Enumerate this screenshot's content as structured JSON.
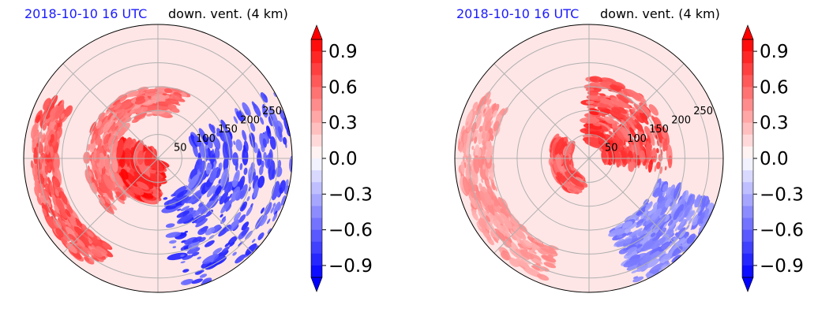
{
  "chart_data": [
    {
      "type": "heatmap",
      "projection": "polar",
      "date_title": "2018-10-10 16 UTC",
      "title": "down. vent. (4 km)",
      "radial_ticks": [
        50,
        100,
        150,
        200,
        250
      ],
      "r_max": 280,
      "angular_grid_deg": 45,
      "grid": true,
      "colormap": "bwr",
      "clim": [
        -1.0,
        1.0
      ],
      "colorbar_ticks": [
        0.9,
        0.6,
        0.3,
        0.0,
        -0.3,
        -0.6,
        -0.9
      ],
      "colorbar_tick_labels": [
        "0.9",
        "0.6",
        "0.3",
        "0.0",
        "−0.3",
        "−0.6",
        "−0.9"
      ],
      "colorbar_extend": "both",
      "features": [
        {
          "feature": "strong positive core",
          "r": [
            10,
            90
          ],
          "theta": [
            160,
            260
          ],
          "value": 1.0
        },
        {
          "feature": "positive band",
          "r": [
            90,
            150
          ],
          "theta": [
            70,
            230
          ],
          "value": 0.7
        },
        {
          "feature": "outer positive arc",
          "r": [
            210,
            265
          ],
          "theta": [
            150,
            240
          ],
          "value": 0.8
        },
        {
          "feature": "negative streaks",
          "r": [
            80,
            280
          ],
          "theta": [
            -80,
            30
          ],
          "value": -0.9
        }
      ]
    },
    {
      "type": "heatmap",
      "projection": "polar",
      "date_title": "2018-10-10 16 UTC",
      "title": "down. vent. (4 km)",
      "radial_ticks": [
        50,
        100,
        150,
        200,
        250
      ],
      "r_max": 280,
      "angular_grid_deg": 45,
      "grid": true,
      "colormap": "bwr",
      "clim": [
        -1.0,
        1.0
      ],
      "colorbar_ticks": [
        0.9,
        0.6,
        0.3,
        0.0,
        -0.3,
        -0.6,
        -0.9
      ],
      "colorbar_tick_labels": [
        "0.9",
        "0.6",
        "0.3",
        "0.0",
        "−0.3",
        "−0.6",
        "−0.9"
      ],
      "colorbar_extend": "both",
      "features": [
        {
          "feature": "positive streaks",
          "r": [
            30,
            170
          ],
          "theta": [
            -10,
            90
          ],
          "value": 0.9
        },
        {
          "feature": "positive inner ring",
          "r": [
            40,
            80
          ],
          "theta": [
            150,
            250
          ],
          "value": 0.8
        },
        {
          "feature": "outer positive arc",
          "r": [
            200,
            270
          ],
          "theta": [
            150,
            250
          ],
          "value": 0.5
        },
        {
          "feature": "negative streaks",
          "r": [
            150,
            280
          ],
          "theta": [
            -70,
            -20
          ],
          "value": -0.6
        }
      ]
    }
  ]
}
